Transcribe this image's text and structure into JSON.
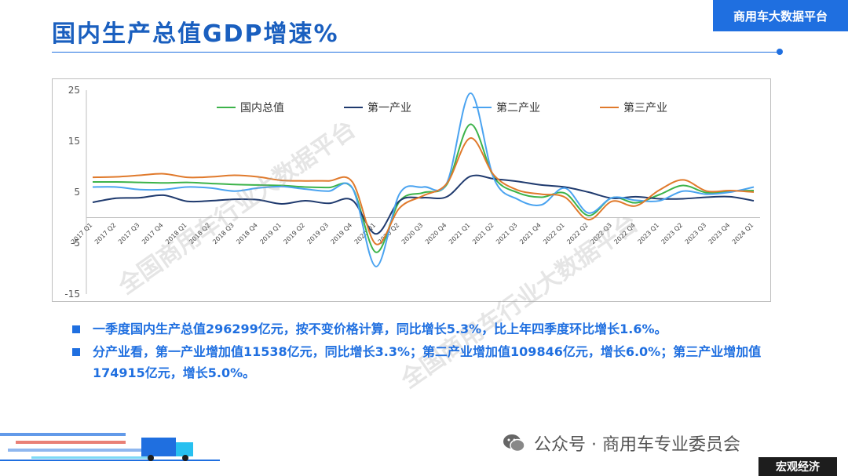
{
  "header": {
    "title": "国内生产总值GDP增速%",
    "brand": "商用车大数据平台"
  },
  "watermark": "全国商用车行业大数据平台",
  "chart_data": {
    "type": "line",
    "categories": [
      "2017 Q1",
      "2017 Q2",
      "2017 Q3",
      "2017 Q4",
      "2018 Q1",
      "2018 Q2",
      "2018 Q3",
      "2018 Q4",
      "2019 Q1",
      "2019 Q2",
      "2019 Q3",
      "2019 Q4",
      "2020 Q1",
      "2020 Q2",
      "2020 Q3",
      "2020 Q4",
      "2021 Q1",
      "2021 Q2",
      "2021 Q3",
      "2021 Q4",
      "2022 Q1",
      "2022 Q2",
      "2022 Q3",
      "2022 Q4",
      "2023 Q1",
      "2023 Q2",
      "2023 Q3",
      "2023 Q4",
      "2024 Q1"
    ],
    "ylim": [
      -15,
      25
    ],
    "yticks": [
      -15,
      -5,
      5,
      15,
      25
    ],
    "grid": false,
    "legend_position": "top",
    "series": [
      {
        "name": "国内总值",
        "color": "#3cb34a",
        "values": [
          7.0,
          7.0,
          6.9,
          6.8,
          6.9,
          6.7,
          6.5,
          6.4,
          6.3,
          6.0,
          5.9,
          5.8,
          -6.8,
          3.2,
          4.9,
          6.5,
          18.3,
          7.9,
          4.9,
          4.0,
          4.8,
          0.4,
          3.9,
          2.9,
          4.5,
          6.3,
          4.9,
          5.2,
          5.3
        ]
      },
      {
        "name": "第一产业",
        "color": "#1f3a6e",
        "values": [
          3.0,
          3.8,
          3.9,
          4.4,
          3.2,
          3.3,
          3.6,
          3.5,
          2.7,
          3.3,
          2.8,
          3.4,
          -3.2,
          3.3,
          3.9,
          4.1,
          8.1,
          7.6,
          7.1,
          6.4,
          6.0,
          5.0,
          3.8,
          4.1,
          3.7,
          3.7,
          4.0,
          4.1,
          3.3
        ]
      },
      {
        "name": "第二产业",
        "color": "#4aa3f0",
        "values": [
          6.0,
          6.0,
          5.5,
          5.5,
          6.0,
          5.8,
          5.2,
          5.8,
          6.1,
          5.6,
          5.2,
          5.8,
          -9.6,
          4.7,
          6.0,
          6.8,
          24.4,
          7.6,
          3.6,
          2.5,
          5.8,
          0.9,
          3.9,
          3.4,
          3.3,
          5.2,
          4.6,
          5.0,
          6.0
        ]
      },
      {
        "name": "第三产业",
        "color": "#e07a2c",
        "values": [
          7.9,
          8.0,
          8.3,
          8.6,
          7.9,
          8.0,
          8.3,
          8.0,
          7.3,
          7.2,
          7.2,
          7.0,
          -5.2,
          1.9,
          4.3,
          6.7,
          15.6,
          8.3,
          5.4,
          4.6,
          4.0,
          -0.4,
          3.2,
          2.3,
          5.4,
          7.4,
          5.2,
          5.3,
          5.0
        ]
      }
    ]
  },
  "bullets": [
    "一季度国内生产总值296299亿元，按不变价格计算，同比增长5.3%，比上年四季度环比增长1.6%。",
    "分产业看，第一产业增加值11538亿元，同比增长3.3%；第二产业增加值109846亿元，增长6.0%；第三产业增加值174915亿元，增长5.0%。"
  ],
  "footer": {
    "wechat_text": "公众号 · 商用车专业委员会",
    "tag": "宏观经济"
  },
  "icons": [
    "wechat-icon",
    "truck-icon"
  ]
}
